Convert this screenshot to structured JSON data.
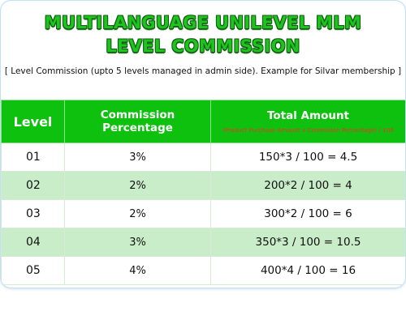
{
  "title": {
    "line1": "MULTILANGUAGE UNILEVEL MLM",
    "line2": "LEVEL COMMISSION"
  },
  "note": "[   Level Commission (upto 5 levels managed in admin side). Example for Silvar membership   ]",
  "table": {
    "headers": {
      "level": "Level",
      "percentage": "Commission Percentage",
      "total": "Total Amount",
      "total_formula": "(Product Purchase Amount x Commision Percentage) / 100"
    },
    "rows": [
      {
        "level": "01",
        "percentage": "3%",
        "total": "150*3 / 100 = 4.5"
      },
      {
        "level": "02",
        "percentage": "2%",
        "total": "200*2 / 100 = 4"
      },
      {
        "level": "03",
        "percentage": "2%",
        "total": "300*2 / 100 = 6"
      },
      {
        "level": "04",
        "percentage": "3%",
        "total": "350*3 / 100 = 10.5"
      },
      {
        "level": "05",
        "percentage": "4%",
        "total": "400*4 / 100 = 16"
      }
    ]
  },
  "colors": {
    "title_green": "#1fc21f",
    "header_green": "#0ec10e",
    "row_highlight": "#c9ecc9",
    "formula_red": "#ff2a2a"
  }
}
